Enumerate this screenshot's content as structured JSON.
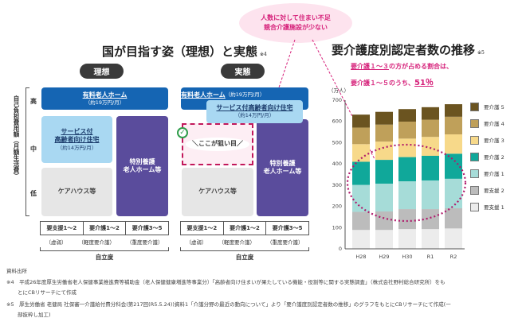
{
  "callout": {
    "line1": "人数に対して住まい不足",
    "line2": "競合介護施設が少ない"
  },
  "left": {
    "title": "国が目指す姿（理想）と実態",
    "note": "※4",
    "axis_label": "自己負担費用額（月額生活費）",
    "levels": [
      "高",
      "中",
      "低"
    ],
    "ideal": {
      "label": "理想",
      "yuryo": "有料老人ホーム",
      "yuryo_price": "（約19万円/月）",
      "sakoju1": "サービス付",
      "sakoju2": "高齢者向け住宅",
      "sakoju_price": "（約14万円/月）",
      "tokuyo1": "特別養護",
      "tokuyo2": "老人ホーム等",
      "carehouse": "ケアハウス等"
    },
    "actual": {
      "label": "実態",
      "yuryo": "有料老人ホーム",
      "yuryo_price": "（約19万円/月）",
      "sakoju": "サービス付高齢者向け住宅",
      "sakoju_price": "（約14万円/月）",
      "target": "＼ここが狙い目／",
      "tokuyo1": "特別養護",
      "tokuyo2": "老人ホーム等",
      "carehouse": "ケアハウス等"
    },
    "table": {
      "cols": [
        "要支援1～2",
        "要介護1～2",
        "要介護3～5"
      ],
      "subs": [
        "（虚弱）",
        "（軽度要介護）",
        "（重度要介護）"
      ],
      "axis": "自立度"
    }
  },
  "chart_data": {
    "type": "bar",
    "stacked": true,
    "title": "要介護度別認定者数の推移",
    "note": "※5",
    "subtitle1_a": "要介護１～３",
    "subtitle1_b": "の方が占める割合は、",
    "subtitle2_a": "要介護１～５のうち、",
    "subtitle2_b": "51％",
    "ylabel": "（万人）",
    "ylim": [
      0,
      700
    ],
    "yticks": [
      0,
      100,
      200,
      300,
      400,
      500,
      600,
      700
    ],
    "categories": [
      "H28",
      "H29",
      "H30",
      "R1",
      "R2"
    ],
    "series": [
      {
        "name": "要支援 1",
        "color": "#ececec",
        "values": [
          89,
          89,
          93,
          93,
          96
        ]
      },
      {
        "name": "要支援 2",
        "color": "#bcbcbc",
        "values": [
          85,
          87,
          94,
          94,
          95
        ]
      },
      {
        "name": "要介護 1",
        "color": "#a6dcd8",
        "values": [
          127,
          131,
          131,
          135,
          139
        ]
      },
      {
        "name": "要介護 2",
        "color": "#10a89a",
        "values": [
          109,
          112,
          114,
          116,
          118
        ]
      },
      {
        "name": "要介護 3",
        "color": "#f7d98a",
        "values": [
          83,
          86,
          87,
          89,
          91
        ]
      },
      {
        "name": "要介護 4",
        "color": "#bfa05a",
        "values": [
          78,
          80,
          80,
          81,
          83
        ]
      },
      {
        "name": "要介護 5",
        "color": "#6b5420",
        "values": [
          61,
          60,
          59,
          59,
          59
        ]
      }
    ],
    "legend": "right"
  },
  "footer": {
    "heading": "資料出所",
    "n4a": "※4　平成26年度厚生労働省老人保健事業推進費等補助金（老人保健健康増進等事業分）「高齢者向け住まいが果たしている機能・役割等に関する実態調査」（株式会社野村総合研究所）をも",
    "n4b": "とにCBリサーチにて作成",
    "n5a": "※5　厚生労働省 老健局 社保審一介護給付費分科会(第217回(R5.5.24))資料1「介護分野の最近の動向について」より「要介護度別認定者数の推移」のグラフをもとにCBリサーチにて作成(一",
    "n5b": "部抜粋し加工)"
  }
}
